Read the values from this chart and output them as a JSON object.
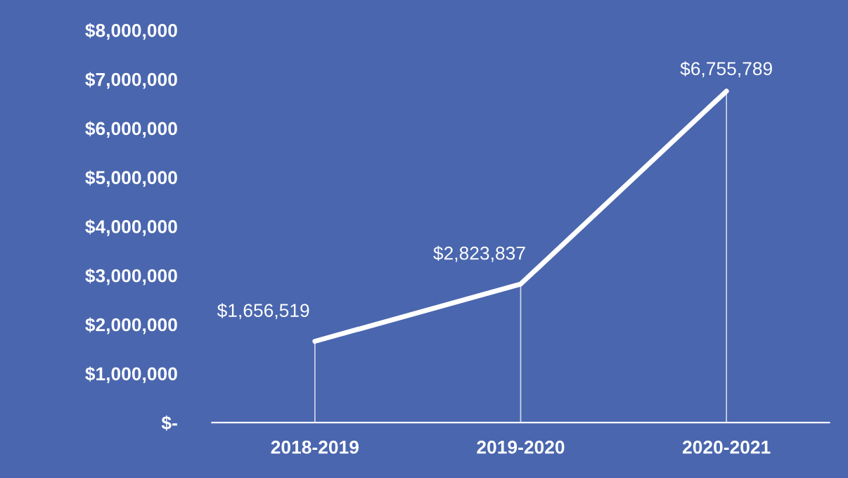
{
  "chart_data": {
    "type": "line",
    "categories": [
      "2018-2019",
      "2019-2020",
      "2020-2021"
    ],
    "series": [
      {
        "color": "#ffffff",
        "values": [
          1656519,
          2823837,
          6755789
        ]
      }
    ],
    "value_labels": [
      "$1,656,519",
      "$2,823,837",
      "$6,755,789"
    ],
    "ylim": [
      0,
      8000000
    ],
    "yticks": [
      {
        "value": 0,
        "label": "$-"
      },
      {
        "value": 1000000,
        "label": "$1,000,000"
      },
      {
        "value": 2000000,
        "label": "$2,000,000"
      },
      {
        "value": 3000000,
        "label": "$3,000,000"
      },
      {
        "value": 4000000,
        "label": "$4,000,000"
      },
      {
        "value": 5000000,
        "label": "$5,000,000"
      },
      {
        "value": 6000000,
        "label": "$6,000,000"
      },
      {
        "value": 7000000,
        "label": "$7,000,000"
      },
      {
        "value": 8000000,
        "label": "$8,000,000"
      }
    ],
    "grid": "x",
    "marker": "none",
    "line_style": "solid"
  }
}
